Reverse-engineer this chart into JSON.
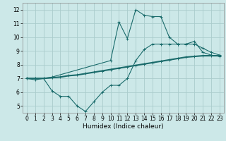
{
  "xlabel": "Humidex (Indice chaleur)",
  "background_color": "#cce8e8",
  "grid_color": "#aacccc",
  "line_color": "#1a6b6b",
  "x_ticks": [
    0,
    1,
    2,
    3,
    4,
    5,
    6,
    7,
    8,
    9,
    10,
    11,
    12,
    13,
    14,
    15,
    16,
    17,
    18,
    19,
    20,
    21,
    22,
    23
  ],
  "y_ticks": [
    5,
    6,
    7,
    8,
    9,
    10,
    11,
    12
  ],
  "ylim": [
    4.5,
    12.5
  ],
  "xlim": [
    -0.5,
    23.5
  ],
  "line1_x": [
    0,
    1,
    2,
    3,
    4,
    5,
    6,
    7,
    8,
    9,
    10,
    11,
    12,
    13,
    14,
    15,
    16,
    17,
    18,
    19,
    20,
    21,
    22,
    23
  ],
  "line1_y": [
    7.0,
    6.9,
    7.0,
    6.1,
    5.7,
    5.7,
    5.0,
    4.6,
    5.3,
    6.0,
    6.5,
    6.5,
    7.0,
    8.3,
    9.1,
    9.5,
    9.5,
    9.5,
    9.5,
    9.5,
    9.5,
    9.2,
    8.9,
    8.7
  ],
  "line2_x": [
    0,
    1,
    2,
    3,
    4,
    5,
    6,
    7,
    8,
    9,
    10,
    11,
    12,
    13,
    14,
    15,
    16,
    17,
    18,
    19,
    20,
    21,
    22,
    23
  ],
  "line2_y": [
    7.0,
    7.0,
    7.0,
    7.05,
    7.1,
    7.2,
    7.25,
    7.35,
    7.45,
    7.55,
    7.65,
    7.75,
    7.85,
    7.95,
    8.05,
    8.15,
    8.25,
    8.35,
    8.45,
    8.55,
    8.6,
    8.65,
    8.65,
    8.65
  ],
  "line3_x": [
    0,
    1,
    2,
    3,
    10,
    11,
    12,
    13,
    14,
    15,
    16,
    17,
    18,
    19,
    20,
    21,
    22,
    23
  ],
  "line3_y": [
    7.0,
    7.0,
    7.0,
    7.1,
    8.3,
    11.1,
    9.9,
    12.0,
    11.6,
    11.5,
    11.5,
    10.0,
    9.5,
    9.5,
    9.7,
    8.9,
    8.7,
    8.6
  ]
}
